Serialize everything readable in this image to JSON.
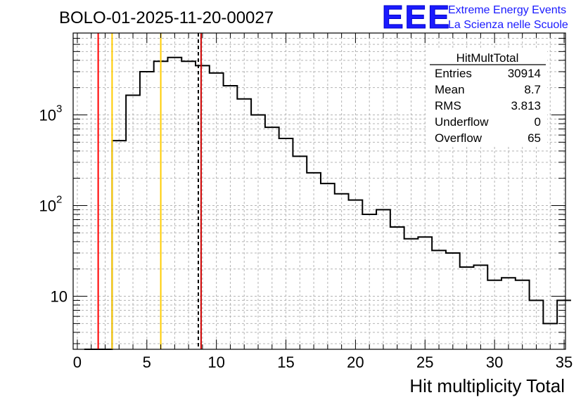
{
  "title": "BOLO-01-2025-11-20-00027",
  "logo": {
    "mark": "EEE",
    "line1": "Extreme Energy Events",
    "line2": "La Scienza nelle Scuole",
    "color": "#1a1aff"
  },
  "stats_box": {
    "name": "HitMultTotal",
    "rows": [
      {
        "label": "Entries",
        "value": "30914"
      },
      {
        "label": "Mean",
        "value": "8.7"
      },
      {
        "label": "RMS",
        "value": "3.813"
      },
      {
        "label": "Underflow",
        "value": "0"
      },
      {
        "label": "Overflow",
        "value": "65"
      }
    ]
  },
  "chart_data": {
    "type": "histogram",
    "title": "BOLO-01-2025-11-20-00027",
    "xlabel": "Hit multiplicity Total",
    "ylabel": "",
    "xlim": [
      -0.3,
      35.1
    ],
    "ylim": [
      2.6,
      8000
    ],
    "yscale": "log",
    "grid": true,
    "bin_width": 1,
    "bin_start": 0.5,
    "values": [
      0,
      0,
      520,
      1650,
      3000,
      3900,
      4300,
      3900,
      3500,
      2900,
      2100,
      1500,
      1000,
      730,
      550,
      350,
      230,
      175,
      135,
      115,
      80,
      90,
      58,
      43,
      45,
      32,
      30,
      21,
      22,
      15,
      16,
      15,
      9,
      5,
      9
    ],
    "x_ticks": [
      0,
      5,
      10,
      15,
      20,
      25,
      30,
      35
    ],
    "y_ticks": [
      {
        "value": 10,
        "label": "10",
        "exp": ""
      },
      {
        "value": 100,
        "label": "10",
        "exp": "2"
      },
      {
        "value": 1000,
        "label": "10",
        "exp": "3"
      }
    ],
    "vertical_lines": [
      {
        "name": "red-line-left",
        "x": 1.5,
        "color": "#ff0000",
        "dash": "solid"
      },
      {
        "name": "yellow-line-left",
        "x": 2.5,
        "color": "#ffcc00",
        "dash": "solid"
      },
      {
        "name": "yellow-line-right",
        "x": 6.0,
        "color": "#ffcc00",
        "dash": "solid"
      },
      {
        "name": "mean-line",
        "x": 8.7,
        "color": "#000000",
        "dash": "dashed"
      },
      {
        "name": "red-line-right",
        "x": 8.9,
        "color": "#cc0000",
        "dash": "solid"
      }
    ]
  }
}
